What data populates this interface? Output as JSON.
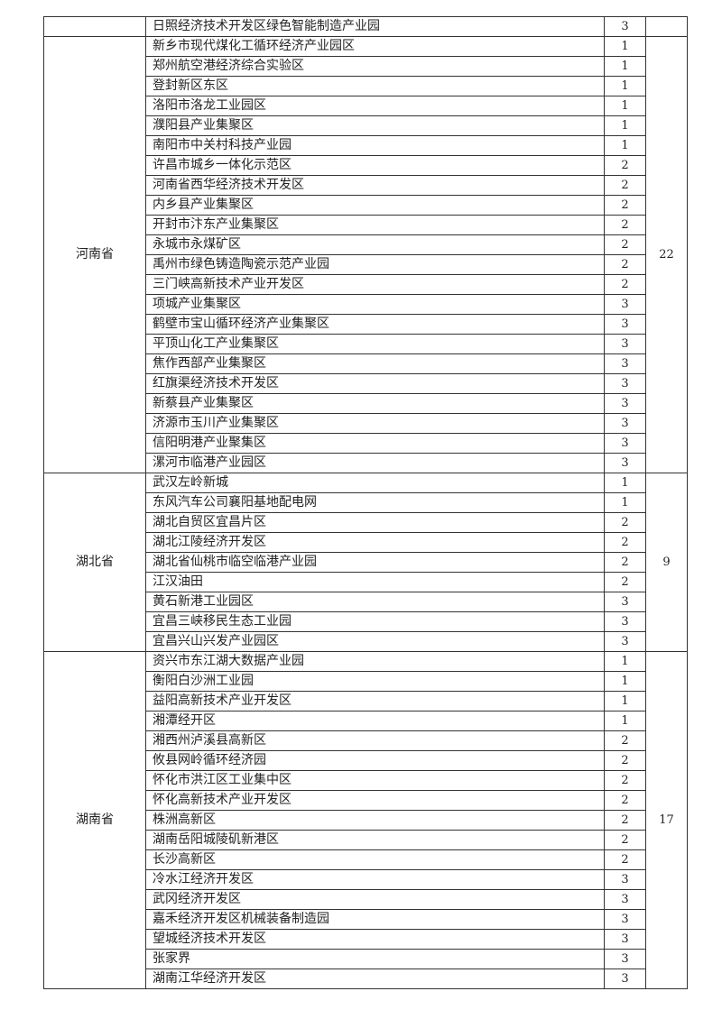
{
  "groups": [
    {
      "province": "",
      "count": "",
      "rows": [
        {
          "name": "日照经济技术开发区绿色智能制造产业园",
          "level": "3"
        }
      ]
    },
    {
      "province": "河南省",
      "count": "22",
      "rows": [
        {
          "name": "新乡市现代煤化工循环经济产业园区",
          "level": "1"
        },
        {
          "name": "郑州航空港经济综合实验区",
          "level": "1"
        },
        {
          "name": "登封新区东区",
          "level": "1"
        },
        {
          "name": "洛阳市洛龙工业园区",
          "level": "1"
        },
        {
          "name": "濮阳县产业集聚区",
          "level": "1"
        },
        {
          "name": "南阳市中关村科技产业园",
          "level": "1"
        },
        {
          "name": "许昌市城乡一体化示范区",
          "level": "2"
        },
        {
          "name": "河南省西华经济技术开发区",
          "level": "2"
        },
        {
          "name": "内乡县产业集聚区",
          "level": "2"
        },
        {
          "name": "开封市汴东产业集聚区",
          "level": "2"
        },
        {
          "name": "永城市永煤矿区",
          "level": "2"
        },
        {
          "name": "禹州市绿色铸造陶瓷示范产业园",
          "level": "2"
        },
        {
          "name": "三门峡高新技术产业开发区",
          "level": "2"
        },
        {
          "name": "项城产业集聚区",
          "level": "3"
        },
        {
          "name": "鹤壁市宝山循环经济产业集聚区",
          "level": "3"
        },
        {
          "name": "平顶山化工产业集聚区",
          "level": "3"
        },
        {
          "name": "焦作西部产业集聚区",
          "level": "3"
        },
        {
          "name": "红旗渠经济技术开发区",
          "level": "3"
        },
        {
          "name": "新蔡县产业集聚区",
          "level": "3"
        },
        {
          "name": "济源市玉川产业集聚区",
          "level": "3"
        },
        {
          "name": "信阳明港产业聚集区",
          "level": "3"
        },
        {
          "name": "漯河市临港产业园区",
          "level": "3"
        }
      ]
    },
    {
      "province": "湖北省",
      "count": "9",
      "rows": [
        {
          "name": "武汉左岭新城",
          "level": "1"
        },
        {
          "name": "东风汽车公司襄阳基地配电网",
          "level": "1"
        },
        {
          "name": "湖北自贸区宜昌片区",
          "level": "2"
        },
        {
          "name": "湖北江陵经济开发区",
          "level": "2"
        },
        {
          "name": "湖北省仙桃市临空临港产业园",
          "level": "2"
        },
        {
          "name": "江汉油田",
          "level": "2"
        },
        {
          "name": "黄石新港工业园区",
          "level": "3"
        },
        {
          "name": "宜昌三峡移民生态工业园",
          "level": "3"
        },
        {
          "name": "宜昌兴山兴发产业园区",
          "level": "3"
        }
      ]
    },
    {
      "province": "湖南省",
      "count": "17",
      "rows": [
        {
          "name": "资兴市东江湖大数据产业园",
          "level": "1"
        },
        {
          "name": "衡阳白沙洲工业园",
          "level": "1"
        },
        {
          "name": "益阳高新技术产业开发区",
          "level": "1"
        },
        {
          "name": "湘潭经开区",
          "level": "1"
        },
        {
          "name": "湘西州泸溪县高新区",
          "level": "2"
        },
        {
          "name": "攸县网岭循环经济园",
          "level": "2"
        },
        {
          "name": "怀化市洪江区工业集中区",
          "level": "2"
        },
        {
          "name": "怀化高新技术产业开发区",
          "level": "2"
        },
        {
          "name": "株洲高新区",
          "level": "2"
        },
        {
          "name": "湖南岳阳城陵矶新港区",
          "level": "2"
        },
        {
          "name": "长沙高新区",
          "level": "2"
        },
        {
          "name": "冷水江经济开发区",
          "level": "3"
        },
        {
          "name": "武冈经济开发区",
          "level": "3"
        },
        {
          "name": "嘉禾经济开发区机械装备制造园",
          "level": "3"
        },
        {
          "name": "望城经济技术开发区",
          "level": "3"
        },
        {
          "name": "张家界",
          "level": "3"
        },
        {
          "name": "湖南江华经济开发区",
          "level": "3"
        }
      ]
    }
  ]
}
